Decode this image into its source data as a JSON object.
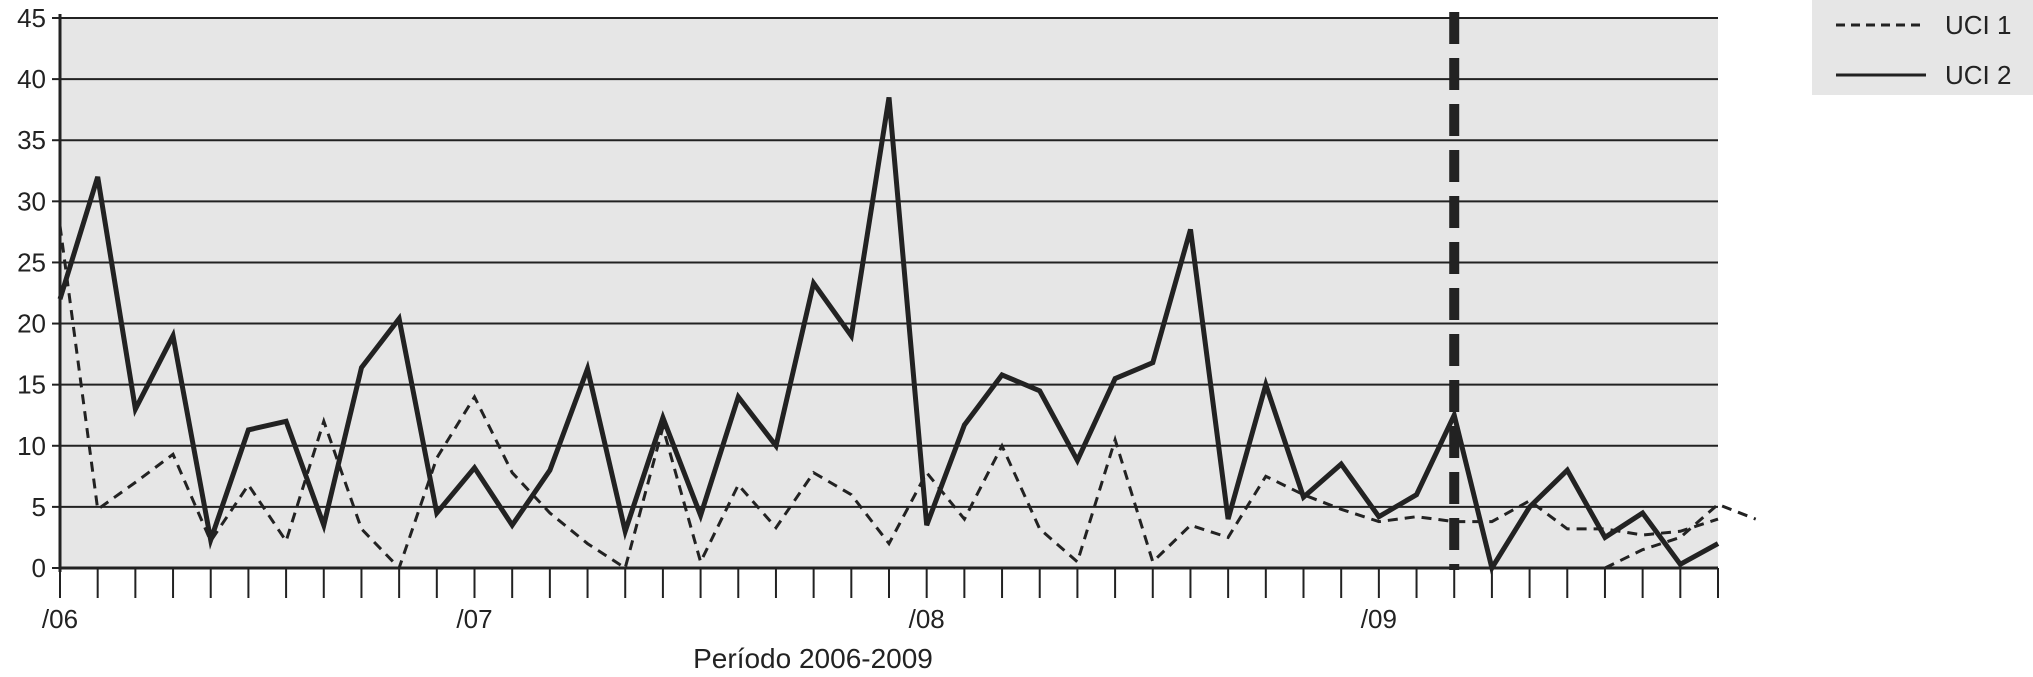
{
  "chart_data": {
    "type": "line",
    "title": "",
    "xlabel": "Período 2006-2009",
    "ylabel": "",
    "ylim": [
      0,
      45
    ],
    "yticks": [
      0,
      5,
      10,
      15,
      20,
      25,
      30,
      35,
      40,
      45
    ],
    "x_period_labels": [
      {
        "label": "/06",
        "index": 0
      },
      {
        "label": "/07",
        "index": 11
      },
      {
        "label": "/08",
        "index": 23
      },
      {
        "label": "/09",
        "index": 35
      }
    ],
    "n_points": 45,
    "grid": true,
    "legend_position": "top-right",
    "intervention_marker_index": 37,
    "colors": {
      "plot_background": "#e6e6e6",
      "line": "#222222"
    },
    "series": [
      {
        "name": "UCI 1",
        "style": "dashed",
        "start_index": 0,
        "values": [
          28,
          4.8,
          7,
          9.3,
          2.2,
          6.8,
          2.2,
          12,
          3.2,
          0,
          9,
          14,
          7.8,
          4.5,
          2,
          0,
          11.5,
          0.5,
          6.8,
          3.3,
          7.8,
          6,
          2,
          7.8,
          4,
          10,
          3.2,
          0.5,
          10.5,
          0.5,
          3.5,
          2.5,
          7.5,
          6,
          4.8,
          3.8,
          4.2,
          3.8,
          3.8,
          5.5,
          3.2,
          3.2,
          2.7,
          3,
          4
        ]
      },
      {
        "name": "UCI 1",
        "style": "dashed",
        "start_index": 41,
        "values": [
          0,
          1.5,
          2.5,
          5.2,
          4
        ]
      },
      {
        "name": "UCI 2",
        "style": "solid",
        "start_index": 0,
        "values": [
          22,
          32,
          13,
          19,
          2.3,
          11.3,
          12,
          3.5,
          16.4,
          20.4,
          4.5,
          8.2,
          3.5,
          8,
          16.3,
          3,
          12.3,
          4.3,
          14,
          10,
          23.3,
          19,
          38.5,
          3.5,
          11.7,
          15.8,
          14.5,
          8.8,
          15.5,
          16.8,
          27.7,
          4,
          15,
          5.8,
          8.5,
          4.2,
          6,
          12.5,
          0,
          5,
          8,
          2.5,
          4.5,
          0.3,
          2
        ]
      }
    ]
  }
}
